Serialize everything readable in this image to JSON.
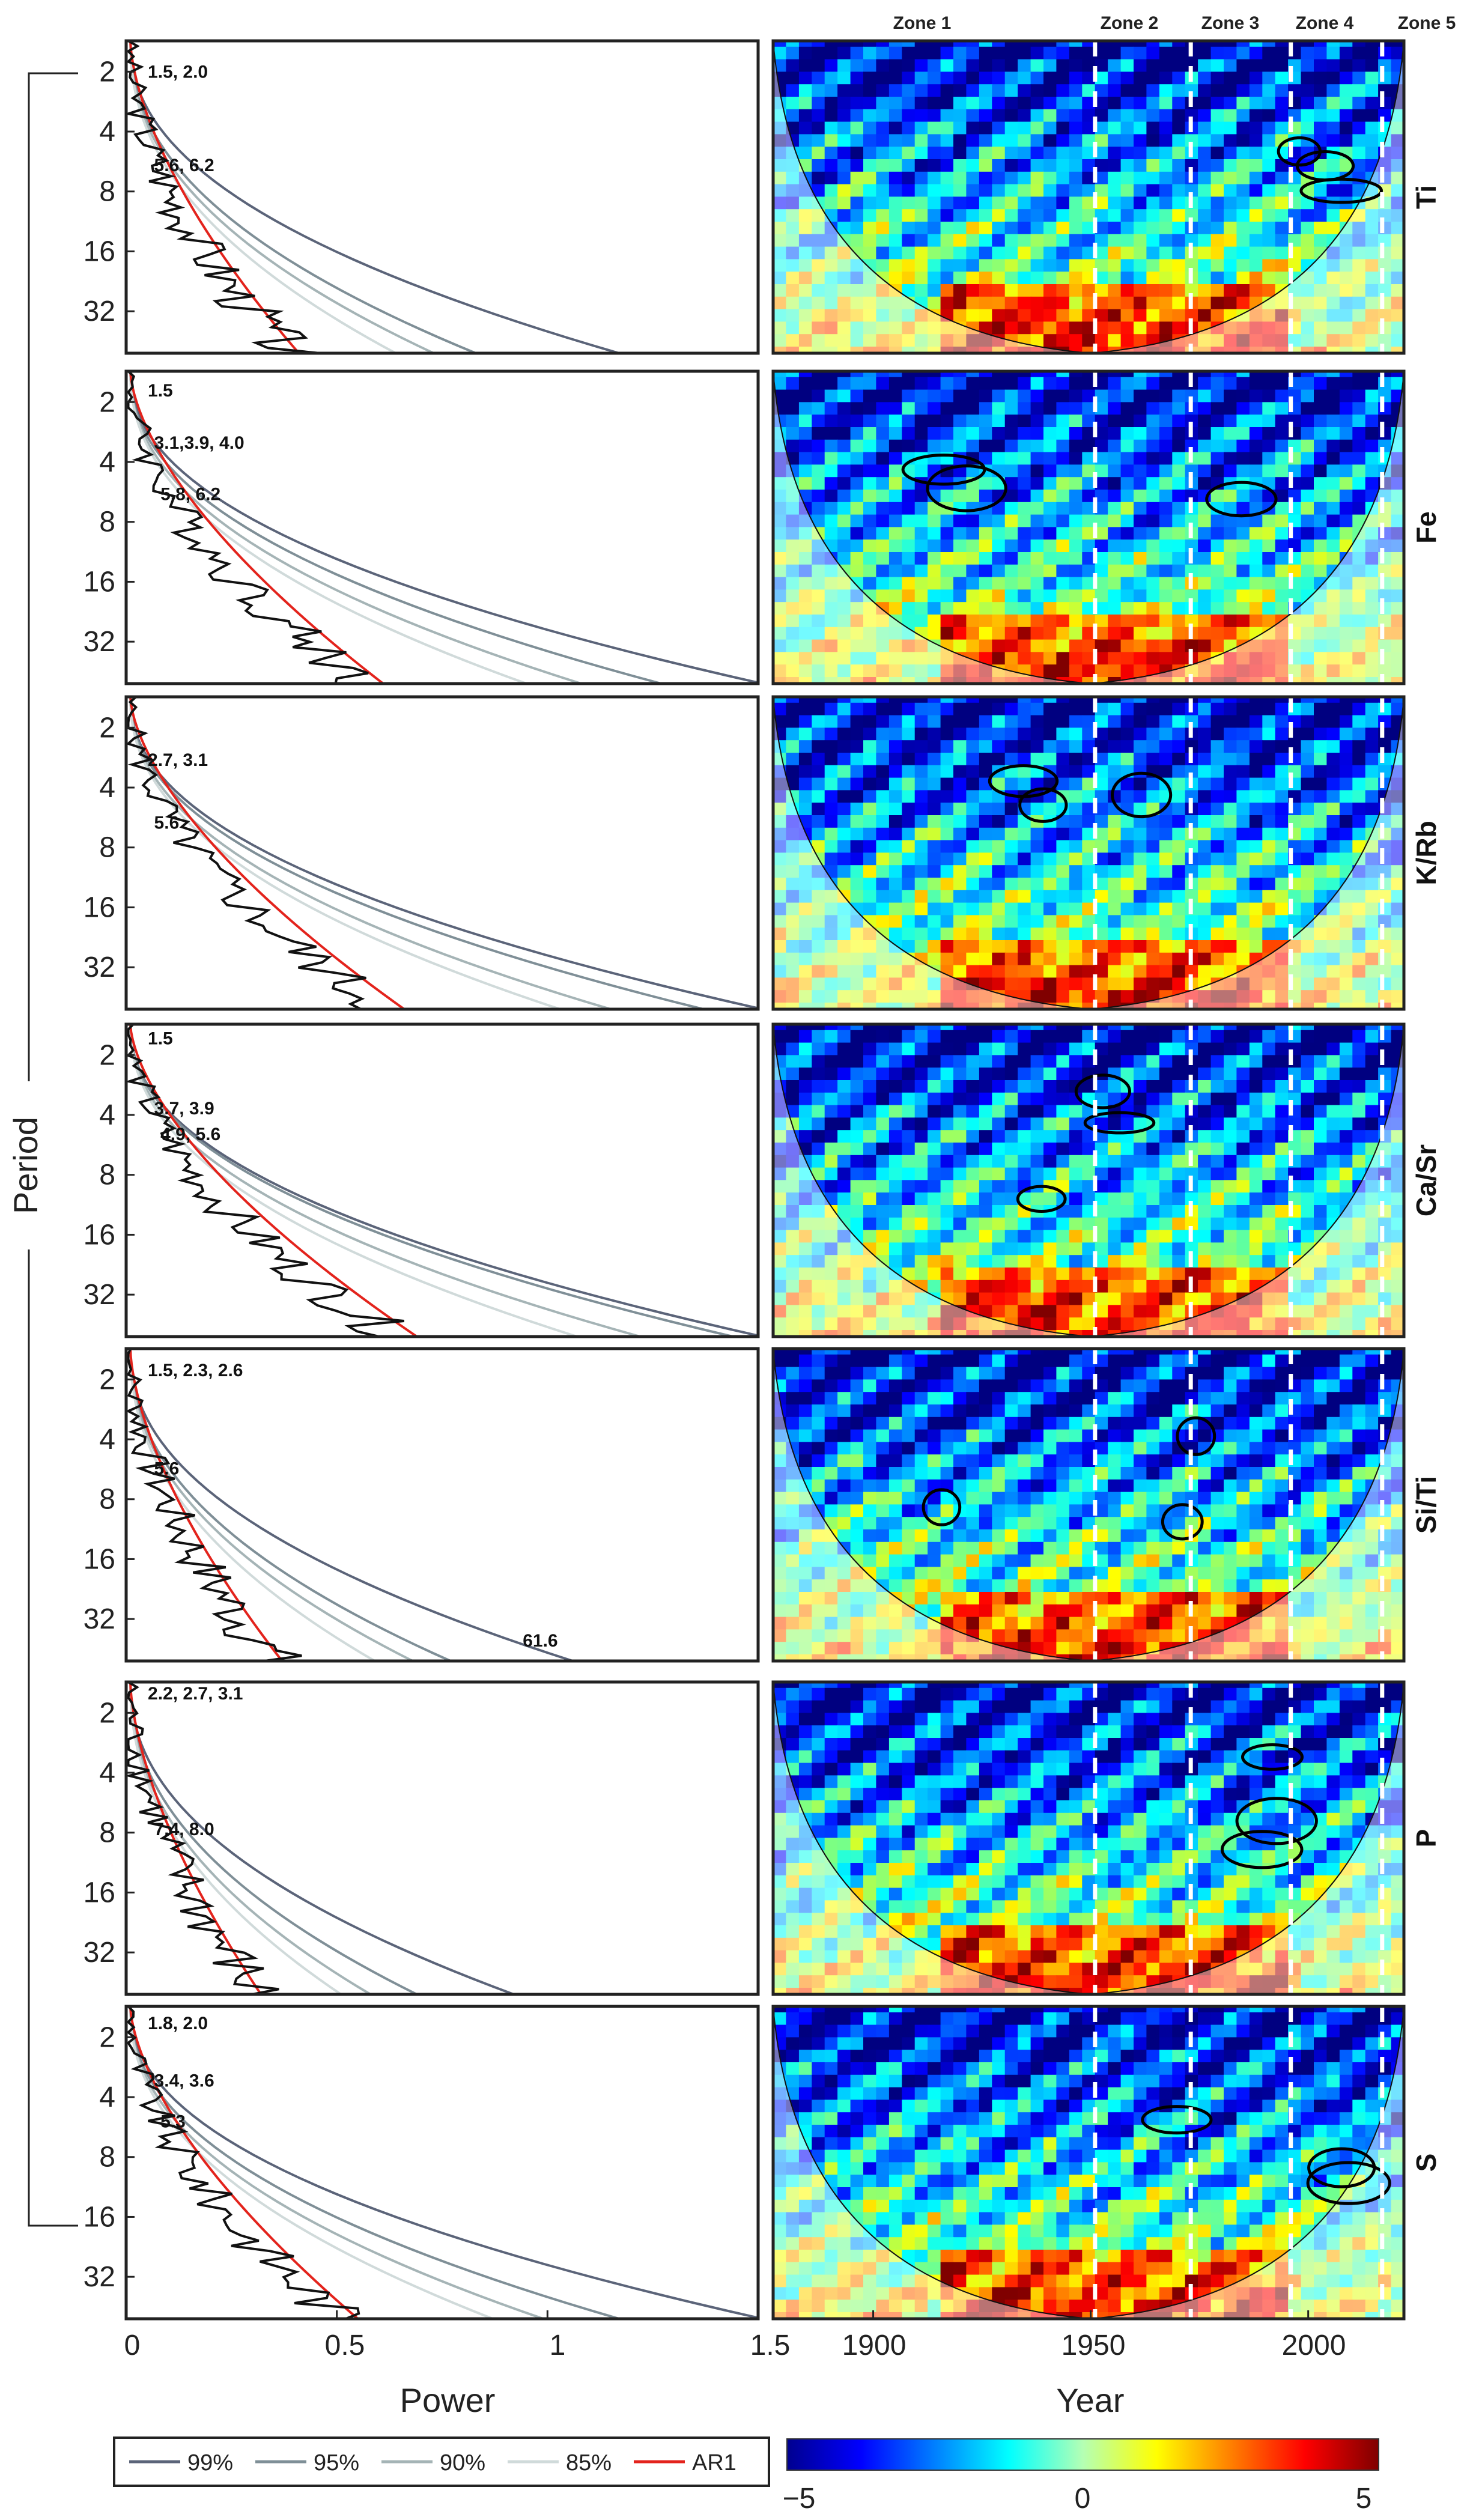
{
  "chart_data": {
    "type": "wavelet-spectrum-panels",
    "left_xlabel": "Power",
    "right_xlabel": "Year",
    "ylabel": "Period",
    "power_ticks": [
      "0",
      "0.5",
      "1",
      "1.5"
    ],
    "power_xlim": [
      0,
      1.5
    ],
    "year_ticks": [
      "1900",
      "1950",
      "2000"
    ],
    "year_xlim": [
      1877,
      2022
    ],
    "period_ticks": [
      "2",
      "4",
      "8",
      "16",
      "32"
    ],
    "period_values": [
      2,
      4,
      8,
      16,
      32
    ],
    "period_ylim": [
      1.4,
      52
    ],
    "zones": [
      "Zone 1",
      "Zone 2",
      "Zone 3",
      "Zone 4",
      "Zone 5"
    ],
    "zone_boundaries": [
      1951,
      1973,
      1996,
      2017
    ],
    "legend": [
      {
        "label": "99%",
        "color": "#5b6479"
      },
      {
        "label": "95%",
        "color": "#7f8f97"
      },
      {
        "label": "90%",
        "color": "#a5b4b6"
      },
      {
        "label": "85%",
        "color": "#d0dada"
      },
      {
        "label": "AR1",
        "color": "#e3231c"
      }
    ],
    "colorbar": {
      "min": -5,
      "max": 5,
      "ticks": [
        "−5",
        "0",
        "5"
      ]
    },
    "panels": [
      {
        "variable": "Ti",
        "annotations": [
          {
            "text": "1.5, 2.0",
            "period": 2.0
          },
          {
            "text": "5.6, 6.2",
            "period": 5.9
          }
        ],
        "ar1_end": 0.4,
        "conf_end": [
          1.16,
          0.82,
          0.72,
          0.63
        ]
      },
      {
        "variable": "Fe",
        "annotations": [
          {
            "text": "1.5",
            "period": 1.75
          },
          {
            "text": "3.1,3.9, 4.0",
            "period": 3.2
          },
          {
            "text": "5.8, 6.2",
            "period": 5.8
          }
        ],
        "ar1_end": 0.6,
        "conf_end": [
          1.5,
          1.26,
          1.07,
          0.94
        ]
      },
      {
        "variable": "K/Rb",
        "annotations": [
          {
            "text": "2.7, 3.1",
            "period": 2.9
          },
          {
            "text": "5.6",
            "period": 6.0
          }
        ],
        "ar1_end": 0.65,
        "conf_end": [
          1.5,
          1.36,
          1.14,
          1.02
        ]
      },
      {
        "variable": "Ca/Sr",
        "annotations": [
          {
            "text": "1.5",
            "period": 1.65
          },
          {
            "text": "3.7, 3.9",
            "period": 3.7
          },
          {
            "text": "4.9, 5.6",
            "period": 5.0
          }
        ],
        "ar1_end": 0.68,
        "conf_end": [
          1.5,
          1.43,
          1.21,
          1.06
        ]
      },
      {
        "variable": "Si/Ti",
        "annotations": [
          {
            "text": "1.5, 2.3, 2.6",
            "period": 1.8
          },
          {
            "text": "5.6",
            "period": 5.6
          },
          {
            "text": "61.6",
            "period": 41
          }
        ],
        "ar1_end": 0.36,
        "conf_end": [
          1.05,
          0.76,
          0.67,
          0.58
        ]
      },
      {
        "variable": "P",
        "annotations": [
          {
            "text": "2.2, 2.7, 3.1",
            "period": 1.6
          },
          {
            "text": "7.4, 8.0",
            "period": 7.7
          }
        ],
        "ar1_end": 0.31,
        "conf_end": [
          0.91,
          0.68,
          0.57,
          0.5
        ]
      },
      {
        "variable": "S",
        "annotations": [
          {
            "text": "1.8, 2.0",
            "period": 1.7
          },
          {
            "text": "3.4, 3.6",
            "period": 3.3
          },
          {
            "text": "5.3",
            "period": 5.3
          }
        ],
        "ar1_end": 0.54,
        "conf_end": [
          1.5,
          1.16,
          0.98,
          0.86
        ]
      }
    ]
  }
}
